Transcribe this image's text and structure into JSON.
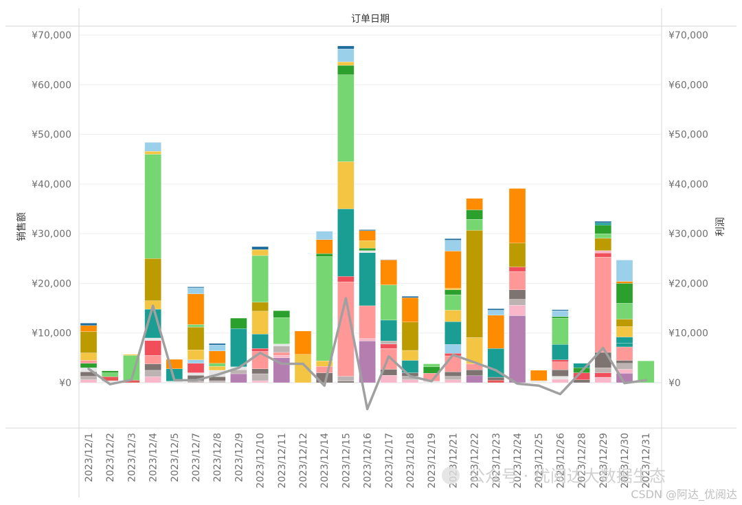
{
  "chart_data": {
    "type": "bar",
    "title": "订单日期",
    "ylabel_left": "销售额",
    "ylabel_right": "利润",
    "ylim": [
      -10000,
      70000
    ],
    "y_ticks": [
      0,
      10000,
      20000,
      30000,
      40000,
      50000,
      60000,
      70000
    ],
    "y_tick_labels": [
      "¥0",
      "¥10,000",
      "¥20,000",
      "¥30,000",
      "¥40,000",
      "¥50,000",
      "¥60,000",
      "¥70,000"
    ],
    "categories": [
      "2023/12/1",
      "2023/12/2",
      "2023/12/3",
      "2023/12/4",
      "2023/12/5",
      "2023/12/7",
      "2023/12/8",
      "2023/12/9",
      "2023/12/10",
      "2023/12/11",
      "2023/12/12",
      "2023/12/14",
      "2023/12/15",
      "2023/12/16",
      "2023/12/17",
      "2023/12/18",
      "2023/12/19",
      "2023/12/21",
      "2023/12/22",
      "2023/12/23",
      "2023/12/24",
      "2023/12/25",
      "2023/12/26",
      "2023/12/28",
      "2023/12/29",
      "2023/12/30",
      "2023/12/31"
    ],
    "stacks": [
      [
        [
          600,
          "#f9b8c9"
        ],
        [
          700,
          "#bdb3b3"
        ],
        [
          900,
          "#7d7370"
        ],
        [
          800,
          "#e6e6e6"
        ],
        [
          900,
          "#2ca02c"
        ],
        [
          600,
          "#ff9896"
        ],
        [
          1500,
          "#f4c542"
        ],
        [
          4300,
          "#bc9b00"
        ],
        [
          1200,
          "#ff8c00"
        ],
        [
          500,
          "#1f6e9e"
        ]
      ],
      [
        [
          400,
          "#e6e6e6"
        ],
        [
          800,
          "#e45756"
        ],
        [
          800,
          "#76d672"
        ],
        [
          400,
          "#2ca02c"
        ]
      ],
      [
        [
          500,
          "#e45756"
        ],
        [
          5000,
          "#76d672"
        ],
        [
          200,
          "#f4c542"
        ]
      ],
      [
        [
          1200,
          "#f9b8c9"
        ],
        [
          1300,
          "#bdb3b3"
        ],
        [
          1300,
          "#7d7370"
        ],
        [
          1700,
          "#ff9896"
        ],
        [
          3000,
          "#ef4e5a"
        ],
        [
          500,
          "#e6e6e6"
        ],
        [
          5800,
          "#1a9e93"
        ],
        [
          1700,
          "#f4c542"
        ],
        [
          8500,
          "#bc9b00"
        ],
        [
          21000,
          "#76d672"
        ],
        [
          600,
          "#f4c542"
        ],
        [
          1800,
          "#9bd0ea"
        ]
      ],
      [
        [
          300,
          "#e6e6e6"
        ],
        [
          2500,
          "#1a9e93"
        ],
        [
          1900,
          "#ff8c00"
        ]
      ],
      [
        [
          400,
          "#bdb3b3"
        ],
        [
          1100,
          "#7d7370"
        ],
        [
          500,
          "#e6e6e6"
        ],
        [
          1900,
          "#ef4e5a"
        ],
        [
          700,
          "#9bd0ea"
        ],
        [
          2000,
          "#f4c542"
        ],
        [
          4600,
          "#bc9b00"
        ],
        [
          500,
          "#76d672"
        ],
        [
          6200,
          "#ff8c00"
        ],
        [
          1200,
          "#9bd0ea"
        ],
        [
          200,
          "#1f6e9e"
        ]
      ],
      [
        [
          400,
          "#bdb3b3"
        ],
        [
          800,
          "#7d7370"
        ],
        [
          1300,
          "#e6e6e6"
        ],
        [
          800,
          "#f4c542"
        ],
        [
          600,
          "#76d672"
        ],
        [
          2500,
          "#ff8c00"
        ],
        [
          1200,
          "#9bd0ea"
        ],
        [
          300,
          "#1f6e9e"
        ]
      ],
      [
        [
          1800,
          "#b47eb0"
        ],
        [
          800,
          "#bdb3b3"
        ],
        [
          600,
          "#e6e6e6"
        ],
        [
          7700,
          "#1a9e93"
        ],
        [
          2100,
          "#2ca02c"
        ]
      ],
      [
        [
          400,
          "#f9b8c9"
        ],
        [
          1400,
          "#bdb3b3"
        ],
        [
          1000,
          "#7d7370"
        ],
        [
          3500,
          "#ff9896"
        ],
        [
          600,
          "#ef4e5a"
        ],
        [
          2900,
          "#1a9e93"
        ],
        [
          4600,
          "#f4c542"
        ],
        [
          1800,
          "#bc9b00"
        ],
        [
          9400,
          "#76d672"
        ],
        [
          1200,
          "#f4c542"
        ],
        [
          600,
          "#1f6e9e"
        ]
      ],
      [
        [
          5000,
          "#b47eb0"
        ],
        [
          500,
          "#f9b8c9"
        ],
        [
          600,
          "#ff9896"
        ],
        [
          1300,
          "#bdb3b3"
        ],
        [
          400,
          "#e6e6e6"
        ],
        [
          5300,
          "#76d672"
        ],
        [
          1400,
          "#2ca02c"
        ]
      ],
      [
        [
          5700,
          "#f4c542"
        ],
        [
          4700,
          "#ff8c00"
        ]
      ],
      [
        [
          2000,
          "#7d7370"
        ],
        [
          1300,
          "#ff9896"
        ],
        [
          1100,
          "#f4c542"
        ],
        [
          21000,
          "#76d672"
        ],
        [
          600,
          "#2ca02c"
        ],
        [
          2800,
          "#ff8c00"
        ],
        [
          1700,
          "#9bd0ea"
        ]
      ],
      [
        [
          300,
          "#7d7370"
        ],
        [
          1000,
          "#bdb3b3"
        ],
        [
          19000,
          "#ff9896"
        ],
        [
          1100,
          "#ef4e5a"
        ],
        [
          13600,
          "#1a9e93"
        ],
        [
          9500,
          "#f4c542"
        ],
        [
          17500,
          "#76d672"
        ],
        [
          1900,
          "#2ca02c"
        ],
        [
          700,
          "#f4c542"
        ],
        [
          2600,
          "#9bd0ea"
        ],
        [
          600,
          "#1f6e9e"
        ]
      ],
      [
        [
          8400,
          "#b47eb0"
        ],
        [
          500,
          "#f9b8c9"
        ],
        [
          6600,
          "#ff9896"
        ],
        [
          10700,
          "#1a9e93"
        ],
        [
          400,
          "#e6e6e6"
        ],
        [
          500,
          "#2ca02c"
        ],
        [
          1500,
          "#f4c542"
        ],
        [
          2000,
          "#ff8c00"
        ],
        [
          200,
          "#1f6e9e"
        ]
      ],
      [
        [
          1500,
          "#f9b8c9"
        ],
        [
          1200,
          "#7d7370"
        ],
        [
          4200,
          "#ff9896"
        ],
        [
          900,
          "#ef4e5a"
        ],
        [
          600,
          "#bdb3b3"
        ],
        [
          4200,
          "#1a9e93"
        ],
        [
          7100,
          "#76d672"
        ],
        [
          5000,
          "#ff8c00"
        ],
        [
          100,
          "#7d7370"
        ]
      ],
      [
        [
          600,
          "#f9b8c9"
        ],
        [
          700,
          "#bdb3b3"
        ],
        [
          700,
          "#7d7370"
        ],
        [
          2500,
          "#1a9e93"
        ],
        [
          2000,
          "#f4c542"
        ],
        [
          5700,
          "#bc9b00"
        ],
        [
          4900,
          "#ff8c00"
        ],
        [
          300,
          "#1f6e9e"
        ]
      ],
      [
        [
          300,
          "#e6e6e6"
        ],
        [
          1600,
          "#ff9896"
        ],
        [
          1300,
          "#2ca02c"
        ],
        [
          600,
          "#76d672"
        ]
      ],
      [
        [
          600,
          "#f9b8c9"
        ],
        [
          700,
          "#bdb3b3"
        ],
        [
          900,
          "#7d7370"
        ],
        [
          3200,
          "#ff9896"
        ],
        [
          500,
          "#ef4e5a"
        ],
        [
          1800,
          "#9bd0ea"
        ],
        [
          4600,
          "#1a9e93"
        ],
        [
          2300,
          "#f4c542"
        ],
        [
          3100,
          "#76d672"
        ],
        [
          1000,
          "#2ca02c"
        ],
        [
          300,
          "#f4c542"
        ],
        [
          7500,
          "#ff8c00"
        ],
        [
          2200,
          "#9bd0ea"
        ],
        [
          300,
          "#1f6e9e"
        ]
      ],
      [
        [
          1400,
          "#b47eb0"
        ],
        [
          1200,
          "#7d7370"
        ],
        [
          1200,
          "#ff9896"
        ],
        [
          5300,
          "#f4c542"
        ],
        [
          21600,
          "#bc9b00"
        ],
        [
          2200,
          "#76d672"
        ],
        [
          1900,
          "#2ca02c"
        ],
        [
          2300,
          "#ff8c00"
        ]
      ],
      [
        [
          500,
          "#e45756"
        ],
        [
          600,
          "#7d7370"
        ],
        [
          5800,
          "#1a9e93"
        ],
        [
          6700,
          "#ff8c00"
        ],
        [
          1000,
          "#9bd0ea"
        ],
        [
          300,
          "#1f6e9e"
        ]
      ],
      [
        [
          13500,
          "#b47eb0"
        ],
        [
          2100,
          "#f9b8c9"
        ],
        [
          1200,
          "#bdb3b3"
        ],
        [
          1900,
          "#7d7370"
        ],
        [
          3700,
          "#ff9896"
        ],
        [
          900,
          "#ef4e5a"
        ],
        [
          4800,
          "#bc9b00"
        ],
        [
          11000,
          "#ff8c00"
        ]
      ],
      [
        [
          400,
          "#e6e6e6"
        ],
        [
          2100,
          "#ff8c00"
        ]
      ],
      [
        [
          700,
          "#f9b8c9"
        ],
        [
          600,
          "#e6e6e6"
        ],
        [
          1300,
          "#7d7370"
        ],
        [
          1600,
          "#ff9896"
        ],
        [
          400,
          "#ef4e5a"
        ],
        [
          3100,
          "#1a9e93"
        ],
        [
          5300,
          "#76d672"
        ],
        [
          300,
          "#2ca02c"
        ],
        [
          1200,
          "#9bd0ea"
        ],
        [
          200,
          "#1f6e9e"
        ]
      ],
      [
        [
          600,
          "#7d7370"
        ],
        [
          1400,
          "#ef4e5a"
        ],
        [
          1000,
          "#2ca02c"
        ],
        [
          900,
          "#1a9e93"
        ]
      ],
      [
        [
          1100,
          "#f9b8c9"
        ],
        [
          900,
          "#ef4e5a"
        ],
        [
          1000,
          "#bdb3b3"
        ],
        [
          3100,
          "#7d7370"
        ],
        [
          19200,
          "#ff9896"
        ],
        [
          800,
          "#ef4e5a"
        ],
        [
          500,
          "#f9b8c9"
        ],
        [
          2500,
          "#bc9b00"
        ],
        [
          900,
          "#76d672"
        ],
        [
          1700,
          "#2ca02c"
        ],
        [
          500,
          "#1a9e93"
        ],
        [
          300,
          "#1f6e9e"
        ]
      ],
      [
        [
          1900,
          "#b47eb0"
        ],
        [
          800,
          "#f9b8c9"
        ],
        [
          1200,
          "#bdb3b3"
        ],
        [
          600,
          "#7d7370"
        ],
        [
          2700,
          "#ff9896"
        ],
        [
          800,
          "#1a9e93"
        ],
        [
          1200,
          "#1a9e93"
        ],
        [
          2100,
          "#f4c542"
        ],
        [
          1500,
          "#bc9b00"
        ],
        [
          3200,
          "#76d672"
        ],
        [
          4000,
          "#2ca02c"
        ],
        [
          400,
          "#ff8c00"
        ],
        [
          4300,
          "#9bd0ea"
        ]
      ],
      [
        [
          4400,
          "#76d672"
        ]
      ]
    ],
    "profit_series": {
      "name": "利润",
      "color": "#a0a0a0",
      "values": [
        2800,
        -300,
        600,
        15500,
        500,
        500,
        1600,
        3000,
        6000,
        3800,
        3800,
        -600,
        17000,
        -5300,
        5300,
        1300,
        300,
        5600,
        4100,
        2500,
        -200,
        -600,
        -2300,
        2300,
        7000,
        -100,
        500
      ]
    }
  },
  "watermark": {
    "line1": "公众号 · 优阅达大数据生态",
    "line2": "CSDN @阿达_优阅达"
  },
  "colors": {
    "grid": "#eeeeee",
    "zero_line": "#dddddd",
    "border": "#d4d4d4"
  }
}
